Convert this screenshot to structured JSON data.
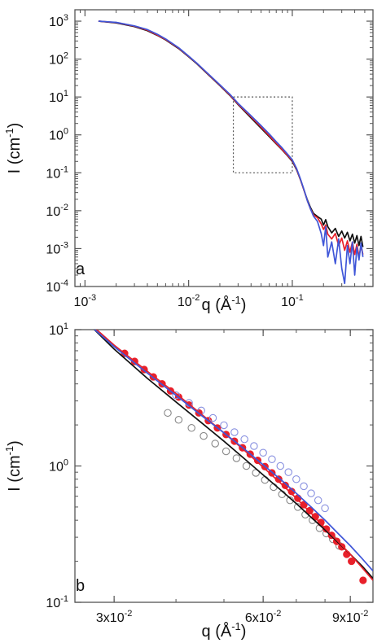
{
  "chart_data": [
    {
      "panel": "a",
      "type": "line",
      "xscale": "log",
      "yscale": "log",
      "xlim": [
        0.0008,
        0.6
      ],
      "ylim": [
        0.0001,
        2000
      ],
      "xticks": [
        0.001,
        0.01,
        0.1
      ],
      "yticks": [
        0.0001,
        0.001,
        0.01,
        0.1,
        1,
        10,
        100,
        1000
      ],
      "xtick_labels": [
        {
          "base": "10",
          "exp": "-3"
        },
        {
          "base": "10",
          "exp": "-2"
        },
        {
          "base": "10",
          "exp": "-1"
        }
      ],
      "ytick_labels": [
        {
          "base": "10",
          "exp": "-4"
        },
        {
          "base": "10",
          "exp": "-3"
        },
        {
          "base": "10",
          "exp": "-2"
        },
        {
          "base": "10",
          "exp": "-1"
        },
        {
          "base": "10",
          "exp": "0"
        },
        {
          "base": "10",
          "exp": "1"
        },
        {
          "base": "10",
          "exp": "2"
        },
        {
          "base": "10",
          "exp": "3"
        }
      ],
      "xlabel": {
        "main": "q (Å",
        "exp": "-1",
        "close": ")"
      },
      "ylabel": {
        "main": "I (cm",
        "exp": "-1",
        "close": ")"
      },
      "zoom_box": {
        "x": [
          0.027,
          0.1
        ],
        "y": [
          0.1,
          10
        ]
      },
      "series": [
        {
          "color": "#111111",
          "x": [
            0.00135,
            0.002,
            0.003,
            0.004,
            0.005,
            0.006,
            0.008,
            0.01,
            0.012,
            0.015,
            0.02,
            0.025,
            0.03,
            0.04,
            0.05,
            0.06,
            0.07,
            0.08,
            0.09,
            0.1,
            0.11,
            0.12,
            0.13,
            0.14,
            0.15,
            0.16,
            0.175,
            0.19,
            0.2,
            0.21,
            0.22,
            0.24,
            0.26,
            0.28,
            0.3,
            0.32,
            0.34,
            0.36,
            0.38,
            0.4,
            0.42,
            0.44,
            0.46,
            0.48
          ],
          "y": [
            1000,
            900,
            720,
            560,
            420,
            320,
            190,
            115,
            75,
            42,
            20,
            11,
            6.3,
            2.8,
            1.5,
            0.9,
            0.58,
            0.4,
            0.28,
            0.2,
            0.12,
            0.065,
            0.034,
            0.019,
            0.012,
            0.0085,
            0.007,
            0.006,
            0.0042,
            0.0058,
            0.0038,
            0.0026,
            0.0034,
            0.0021,
            0.0029,
            0.0019,
            0.0027,
            0.0016,
            0.0024,
            0.0014,
            0.0022,
            0.0012,
            0.0021,
            0.0011
          ]
        },
        {
          "color": "#e8202a",
          "x": [
            0.00135,
            0.002,
            0.003,
            0.004,
            0.005,
            0.006,
            0.008,
            0.01,
            0.012,
            0.015,
            0.02,
            0.025,
            0.03,
            0.04,
            0.05,
            0.06,
            0.07,
            0.08,
            0.09,
            0.1,
            0.11,
            0.12,
            0.13,
            0.14,
            0.15,
            0.16,
            0.175,
            0.19,
            0.2,
            0.21,
            0.22,
            0.24,
            0.26,
            0.28,
            0.3,
            0.32,
            0.34,
            0.36,
            0.38,
            0.4,
            0.42,
            0.44,
            0.46,
            0.48
          ],
          "y": [
            1000,
            920,
            740,
            580,
            430,
            330,
            195,
            118,
            77,
            43,
            20.5,
            11.3,
            6.5,
            3.0,
            1.6,
            0.95,
            0.6,
            0.41,
            0.29,
            0.21,
            0.125,
            0.066,
            0.034,
            0.018,
            0.011,
            0.0078,
            0.0065,
            0.0045,
            0.0032,
            0.0042,
            0.0024,
            0.0018,
            0.0025,
            0.0012,
            0.0019,
            0.0009,
            0.0016,
            0.0008,
            0.0015,
            0.0007,
            0.0013,
            0.0006,
            0.0012,
            0.0007
          ]
        },
        {
          "color": "#3f56d8",
          "x": [
            0.00135,
            0.002,
            0.003,
            0.004,
            0.005,
            0.006,
            0.008,
            0.01,
            0.012,
            0.015,
            0.02,
            0.025,
            0.03,
            0.04,
            0.05,
            0.06,
            0.07,
            0.08,
            0.09,
            0.1,
            0.11,
            0.12,
            0.13,
            0.14,
            0.15,
            0.16,
            0.175,
            0.19,
            0.2,
            0.21,
            0.22,
            0.24,
            0.26,
            0.28,
            0.3,
            0.32,
            0.34,
            0.36,
            0.38,
            0.4,
            0.42,
            0.44,
            0.46,
            0.48
          ],
          "y": [
            1000,
            930,
            750,
            600,
            450,
            340,
            200,
            120,
            78,
            44,
            21,
            11.8,
            6.8,
            3.2,
            1.75,
            1.05,
            0.66,
            0.45,
            0.31,
            0.22,
            0.13,
            0.068,
            0.035,
            0.018,
            0.011,
            0.0072,
            0.0052,
            0.0025,
            0.0012,
            0.0038,
            0.0006,
            0.0015,
            0.0004,
            0.0018,
            0.0003,
            0.00012,
            0.0012,
            0.0004,
            0.0015,
            0.0002,
            0.0011,
            0.0005,
            0.0014,
            0.0006
          ]
        }
      ]
    },
    {
      "panel": "b",
      "type": "line",
      "xscale": "log",
      "yscale": "log",
      "xlim": [
        0.025,
        0.1
      ],
      "ylim": [
        0.1,
        10
      ],
      "xticks": [
        0.03,
        0.06,
        0.09
      ],
      "yticks": [
        0.1,
        1,
        10
      ],
      "xtick_labels": [
        {
          "base": "3x10",
          "exp": "-2"
        },
        {
          "base": "6x10",
          "exp": "-2"
        },
        {
          "base": "9x10",
          "exp": "-2"
        }
      ],
      "ytick_labels": [
        {
          "base": "10",
          "exp": "-1"
        },
        {
          "base": "10",
          "exp": "0"
        },
        {
          "base": "10",
          "exp": "1"
        }
      ],
      "xlabel": {
        "main": "q (Å",
        "exp": "-1",
        "close": ")"
      },
      "ylabel": {
        "main": "I (cm",
        "exp": "-1",
        "close": ")"
      },
      "series": [
        {
          "color": "#111111",
          "x": [
            0.027,
            0.03,
            0.035,
            0.04,
            0.045,
            0.05,
            0.055,
            0.06,
            0.065,
            0.07,
            0.075,
            0.08,
            0.085,
            0.09,
            0.095,
            0.1
          ],
          "y": [
            10.5,
            7.2,
            4.4,
            2.95,
            2.08,
            1.52,
            1.13,
            0.86,
            0.67,
            0.53,
            0.42,
            0.34,
            0.275,
            0.225,
            0.185,
            0.15
          ]
        },
        {
          "color": "#e8202a",
          "x": [
            0.027,
            0.03,
            0.035,
            0.04,
            0.045,
            0.05,
            0.055,
            0.06,
            0.065,
            0.07,
            0.075,
            0.08,
            0.085,
            0.09,
            0.095,
            0.1
          ],
          "y": [
            10.8,
            7.7,
            4.95,
            3.4,
            2.4,
            1.75,
            1.3,
            0.98,
            0.75,
            0.58,
            0.45,
            0.35,
            0.28,
            0.225,
            0.18,
            0.145
          ]
        },
        {
          "color": "#3f56d8",
          "x": [
            0.027,
            0.03,
            0.035,
            0.04,
            0.045,
            0.05,
            0.055,
            0.06,
            0.065,
            0.07,
            0.075,
            0.08,
            0.085,
            0.09,
            0.095,
            0.1
          ],
          "y": [
            10.5,
            7.5,
            4.8,
            3.3,
            2.35,
            1.75,
            1.33,
            1.02,
            0.8,
            0.63,
            0.5,
            0.4,
            0.32,
            0.26,
            0.21,
            0.17
          ]
        }
      ],
      "scatter_series": [
        {
          "color": "#888888",
          "filled": false,
          "x": [
            0.0385,
            0.0405,
            0.043,
            0.0455,
            0.048,
            0.0505,
            0.053,
            0.0555,
            0.058,
            0.0605,
            0.063,
            0.0655,
            0.068,
            0.0705,
            0.073,
            0.0755,
            0.078,
            0.0805,
            0.083,
            0.0855
          ],
          "y": [
            2.45,
            2.18,
            1.9,
            1.66,
            1.46,
            1.28,
            1.14,
            1.0,
            0.89,
            0.79,
            0.7,
            0.62,
            0.56,
            0.5,
            0.44,
            0.4,
            0.35,
            0.32,
            0.29,
            0.26
          ]
        },
        {
          "color": "#e8202a",
          "filled": true,
          "x": [
            0.0315,
            0.033,
            0.0345,
            0.036,
            0.0375,
            0.039,
            0.0405,
            0.0425,
            0.0445,
            0.0465,
            0.0485,
            0.0505,
            0.0525,
            0.0545,
            0.0565,
            0.0585,
            0.0605,
            0.0625,
            0.0645,
            0.0665,
            0.0685,
            0.0705,
            0.0725,
            0.0745,
            0.0765,
            0.0785,
            0.0805,
            0.0825,
            0.0845,
            0.0865,
            0.0885,
            0.0905,
            0.0955
          ],
          "y": [
            6.7,
            5.85,
            5.1,
            4.5,
            4.0,
            3.55,
            3.2,
            2.8,
            2.45,
            2.15,
            1.9,
            1.7,
            1.52,
            1.36,
            1.22,
            1.1,
            0.99,
            0.89,
            0.8,
            0.72,
            0.65,
            0.58,
            0.52,
            0.47,
            0.425,
            0.385,
            0.345,
            0.31,
            0.28,
            0.255,
            0.225,
            0.2,
            0.145
          ]
        },
        {
          "color": "#8890e0",
          "filled": false,
          "x": [
            0.04,
            0.0425,
            0.045,
            0.0475,
            0.05,
            0.0525,
            0.055,
            0.0575,
            0.06,
            0.0625,
            0.065,
            0.0675,
            0.07,
            0.0725,
            0.075,
            0.0775,
            0.08
          ],
          "y": [
            3.3,
            2.9,
            2.55,
            2.25,
            1.99,
            1.77,
            1.57,
            1.4,
            1.25,
            1.12,
            1.0,
            0.9,
            0.8,
            0.71,
            0.63,
            0.56,
            0.49
          ]
        }
      ]
    }
  ]
}
